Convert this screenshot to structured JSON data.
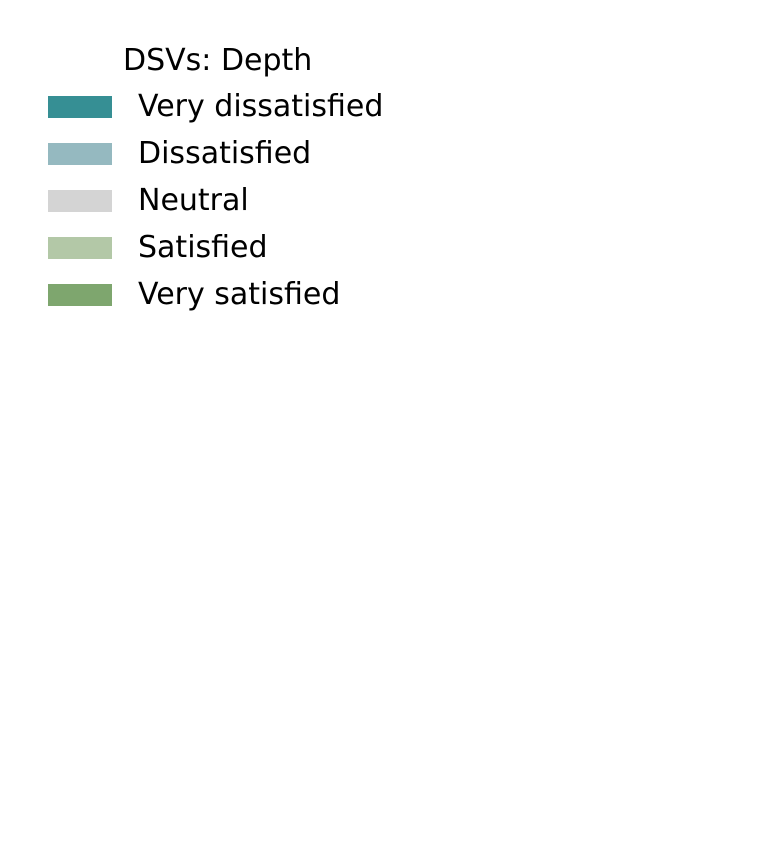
{
  "chart_data": {
    "type": "bar",
    "title": "",
    "legend": {
      "title": "DSVs: Depth",
      "placement": "top-left",
      "entries": [
        {
          "label": "Very dissatisfied",
          "color": "#368f94"
        },
        {
          "label": "Dissatisfied",
          "color": "#95b9c0"
        },
        {
          "label": "Neutral",
          "color": "#d4d4d4"
        },
        {
          "label": "Satisfied",
          "color": "#b3c8a7"
        },
        {
          "label": "Very satisfied",
          "color": "#7ea66e"
        }
      ]
    },
    "series": []
  }
}
